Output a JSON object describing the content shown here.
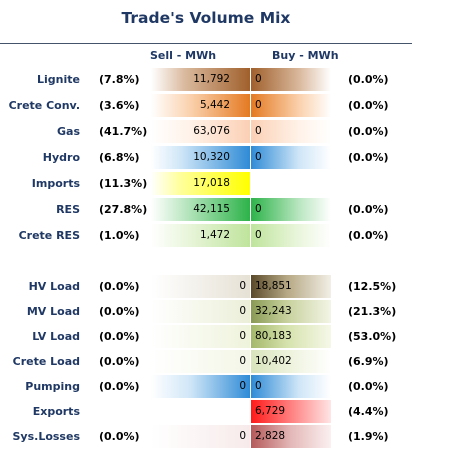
{
  "title": "Trade's Volume Mix",
  "headers": {
    "sell": "Sell - MWh",
    "buy": "Buy - MWh"
  },
  "colors": {
    "title": "#1f3864",
    "label": "#1f3864"
  },
  "rows": [
    {
      "label": "Lignite",
      "sell_pct": "(7.8%)",
      "sell": "11,792",
      "buy": "0",
      "buy_pct": "(0.0%)"
    },
    {
      "label": "Crete Conv.",
      "sell_pct": "(3.6%)",
      "sell": "5,442",
      "buy": "0",
      "buy_pct": "(0.0%)"
    },
    {
      "label": "Gas",
      "sell_pct": "(41.7%)",
      "sell": "63,076",
      "buy": "0",
      "buy_pct": "(0.0%)"
    },
    {
      "label": "Hydro",
      "sell_pct": "(6.8%)",
      "sell": "10,320",
      "buy": "0",
      "buy_pct": "(0.0%)"
    },
    {
      "label": "Imports",
      "sell_pct": "(11.3%)",
      "sell": "17,018",
      "buy": "",
      "buy_pct": ""
    },
    {
      "label": "RES",
      "sell_pct": "(27.8%)",
      "sell": "42,115",
      "buy": "0",
      "buy_pct": "(0.0%)"
    },
    {
      "label": "Crete RES",
      "sell_pct": "(1.0%)",
      "sell": "1,472",
      "buy": "0",
      "buy_pct": "(0.0%)"
    },
    {
      "label": "HV Load",
      "sell_pct": "(0.0%)",
      "sell": "0",
      "buy": "18,851",
      "buy_pct": "(12.5%)"
    },
    {
      "label": "MV Load",
      "sell_pct": "(0.0%)",
      "sell": "0",
      "buy": "32,243",
      "buy_pct": "(21.3%)"
    },
    {
      "label": "LV Load",
      "sell_pct": "(0.0%)",
      "sell": "0",
      "buy": "80,183",
      "buy_pct": "(53.0%)"
    },
    {
      "label": "Crete Load",
      "sell_pct": "(0.0%)",
      "sell": "0",
      "buy": "10,402",
      "buy_pct": "(6.9%)"
    },
    {
      "label": "Pumping",
      "sell_pct": "(0.0%)",
      "sell": "0",
      "buy": "0",
      "buy_pct": "(0.0%)"
    },
    {
      "label": "Exports",
      "sell_pct": "",
      "sell": "",
      "buy": "6,729",
      "buy_pct": "(4.4%)"
    },
    {
      "label": "Sys.Losses",
      "sell_pct": "(0.0%)",
      "sell": "0",
      "buy": "2,828",
      "buy_pct": "(1.9%)"
    }
  ]
}
